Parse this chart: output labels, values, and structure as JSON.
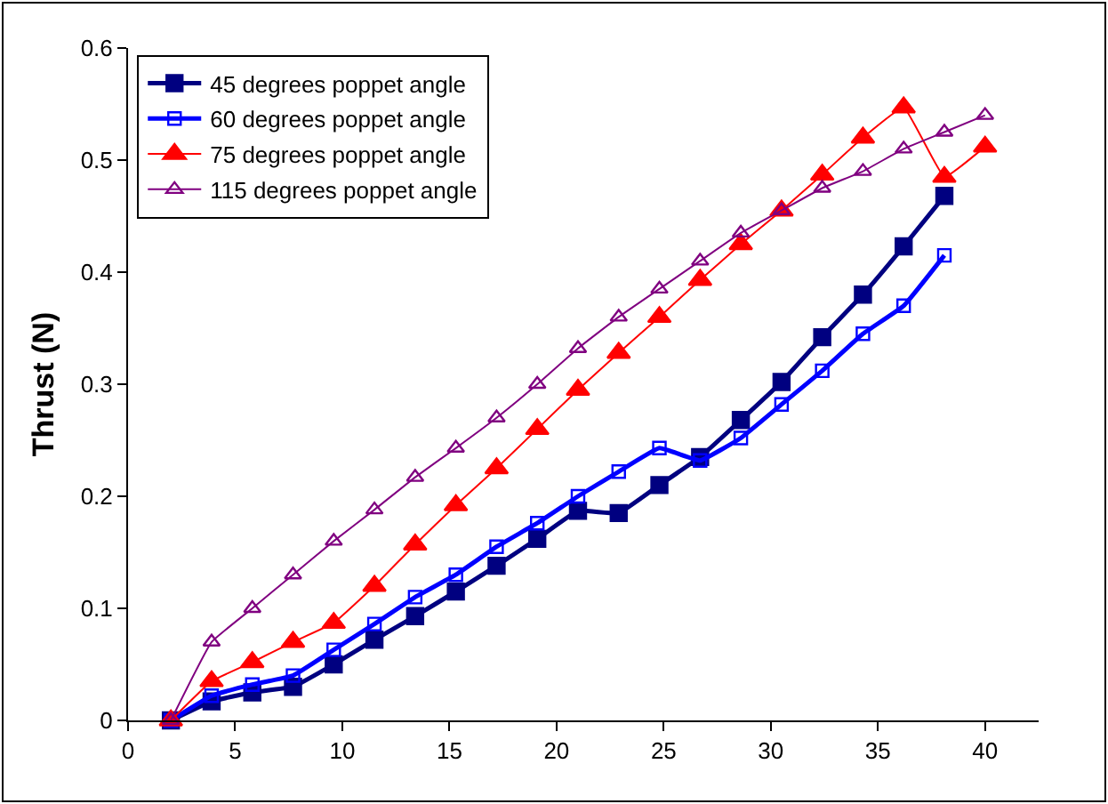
{
  "chart_data": {
    "type": "line",
    "ylabel": "Thrust (N)",
    "x": [
      2,
      3.9,
      5.8,
      7.7,
      9.6,
      11.5,
      13.4,
      15.3,
      17.2,
      19.1,
      21,
      22.9,
      24.8,
      26.7,
      28.6,
      30.5,
      32.4,
      34.3,
      36.2,
      38.1,
      40
    ],
    "series": [
      {
        "name": "45 degrees poppet angle",
        "color": "#000080",
        "marker": "square",
        "values": [
          0,
          0.017,
          0.025,
          0.03,
          0.05,
          0.072,
          0.093,
          0.115,
          0.138,
          0.162,
          0.187,
          0.185,
          0.21,
          0.235,
          0.268,
          0.302,
          0.342,
          0.38,
          0.423,
          0.468,
          null
        ]
      },
      {
        "name": "60 degrees poppet angle",
        "color": "#0000ff",
        "marker": "square-open",
        "values": [
          0,
          0.022,
          0.032,
          0.04,
          0.063,
          0.086,
          0.11,
          0.13,
          0.155,
          0.176,
          0.2,
          0.222,
          0.243,
          0.232,
          0.252,
          0.282,
          0.312,
          0.345,
          0.37,
          0.415,
          null
        ]
      },
      {
        "name": "75 degrees poppet angle",
        "color": "#ff0000",
        "marker": "triangle",
        "values": [
          0,
          0.035,
          0.052,
          0.07,
          0.087,
          0.12,
          0.157,
          0.192,
          0.225,
          0.26,
          0.295,
          0.328,
          0.36,
          0.393,
          0.425,
          0.455,
          0.487,
          0.52,
          0.547,
          0.485,
          0.512
        ]
      },
      {
        "name": "115 degrees poppet angle",
        "color": "#800080",
        "marker": "triangle-open",
        "values": [
          0,
          0.07,
          0.1,
          0.13,
          0.16,
          0.188,
          0.217,
          0.243,
          0.27,
          0.3,
          0.332,
          0.36,
          0.385,
          0.41,
          0.435,
          0.455,
          0.475,
          0.49,
          0.51,
          0.525,
          0.54
        ]
      }
    ],
    "xlim": [
      0,
      42.5
    ],
    "xticks": [
      0,
      5,
      10,
      15,
      20,
      25,
      30,
      35,
      40
    ],
    "ylim": [
      0,
      0.6
    ],
    "yticks": [
      0,
      0.1,
      0.2,
      0.3,
      0.4,
      0.5,
      0.6
    ],
    "grid": false,
    "legend": "top left",
    "line_style": "solid"
  }
}
